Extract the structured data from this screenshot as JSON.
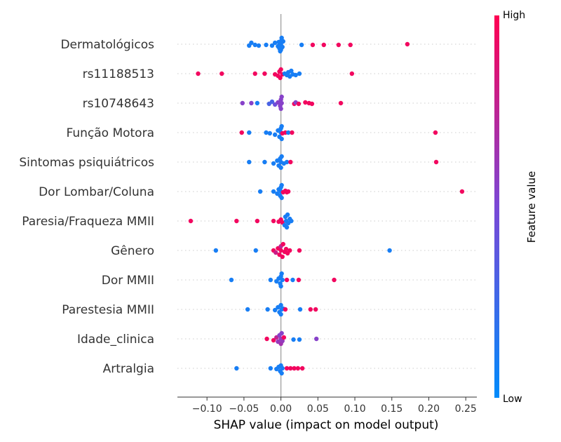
{
  "chart_data": {
    "type": "scatter",
    "subtype": "shap-beeswarm",
    "xlabel": "SHAP value (impact on model output)",
    "xlim": [
      -0.14,
      0.265
    ],
    "xticks": [
      -0.1,
      -0.05,
      0.0,
      0.05,
      0.1,
      0.15,
      0.2,
      0.25
    ],
    "xtick_labels": [
      "−0.10",
      "−0.05",
      "0.00",
      "0.05",
      "0.10",
      "0.15",
      "0.20",
      "0.25"
    ],
    "colorbar": {
      "title": "Feature value",
      "high_label": "High",
      "low_label": "Low",
      "low_color": "#008bfb",
      "high_color": "#ff0052"
    },
    "features": [
      {
        "name": "Dermatológicos",
        "points": [
          [
            -0.043,
            0.1,
            0.1
          ],
          [
            -0.04,
            -0.1,
            0.1
          ],
          [
            -0.035,
            0.05,
            0.1
          ],
          [
            -0.03,
            0.1,
            0.1
          ],
          [
            -0.02,
            0.05,
            0.1
          ],
          [
            -0.012,
            0.1,
            0.1
          ],
          [
            -0.008,
            -0.1,
            0.1
          ],
          [
            -0.004,
            0.15,
            0.1
          ],
          [
            -0.003,
            -0.15,
            0.1
          ],
          [
            -0.002,
            0.3,
            0.1
          ],
          [
            0.0,
            0.0,
            0.1
          ],
          [
            0.0,
            0.4,
            0.1
          ],
          [
            0.001,
            -0.3,
            0.1
          ],
          [
            0.002,
            0.2,
            0.1
          ],
          [
            0.003,
            -0.2,
            0.1
          ],
          [
            -0.001,
            0.5,
            0.1
          ],
          [
            0.001,
            -0.45,
            0.1
          ],
          [
            0.028,
            0.05,
            0.1
          ],
          [
            0.043,
            0.05,
            0.95
          ],
          [
            0.058,
            0.05,
            0.95
          ],
          [
            0.078,
            0.05,
            0.95
          ],
          [
            0.094,
            0.05,
            0.95
          ],
          [
            0.171,
            0.0,
            0.95
          ]
        ]
      },
      {
        "name": "rs11188513",
        "points": [
          [
            -0.112,
            0.0,
            0.95
          ],
          [
            -0.08,
            0.0,
            0.95
          ],
          [
            -0.035,
            0.0,
            0.95
          ],
          [
            -0.022,
            0.0,
            0.95
          ],
          [
            -0.008,
            0.05,
            0.95
          ],
          [
            -0.004,
            0.15,
            0.95
          ],
          [
            -0.002,
            -0.15,
            0.95
          ],
          [
            -0.001,
            0.3,
            0.95
          ],
          [
            0.0,
            -0.3,
            0.95
          ],
          [
            0.002,
            0.05,
            0.95
          ],
          [
            0.005,
            0.0,
            0.1
          ],
          [
            0.008,
            0.1,
            0.1
          ],
          [
            0.01,
            -0.1,
            0.1
          ],
          [
            0.012,
            0.2,
            0.1
          ],
          [
            0.014,
            -0.2,
            0.1
          ],
          [
            0.016,
            0.05,
            0.1
          ],
          [
            0.02,
            0.1,
            0.1
          ],
          [
            0.025,
            0.0,
            0.1
          ],
          [
            0.096,
            0.0,
            0.95
          ]
        ]
      },
      {
        "name": "rs10748643",
        "points": [
          [
            -0.052,
            0.0,
            0.55
          ],
          [
            -0.04,
            0.0,
            0.55
          ],
          [
            -0.032,
            0.0,
            0.1
          ],
          [
            -0.016,
            0.05,
            0.3
          ],
          [
            -0.012,
            -0.1,
            0.3
          ],
          [
            -0.008,
            0.1,
            0.45
          ],
          [
            -0.004,
            -0.05,
            0.55
          ],
          [
            -0.001,
            0.2,
            0.55
          ],
          [
            0.0,
            -0.25,
            0.55
          ],
          [
            0.0,
            0.4,
            0.55
          ],
          [
            0.001,
            -0.45,
            0.55
          ],
          [
            0.001,
            0.0,
            0.55
          ],
          [
            0.018,
            0.05,
            0.95
          ],
          [
            0.02,
            -0.05,
            0.55
          ],
          [
            0.024,
            0.05,
            0.95
          ],
          [
            0.033,
            -0.05,
            0.95
          ],
          [
            0.038,
            0.0,
            0.95
          ],
          [
            0.042,
            0.05,
            0.95
          ],
          [
            0.081,
            0.0,
            0.95
          ]
        ]
      },
      {
        "name": "Função Motora",
        "points": [
          [
            -0.053,
            0.0,
            0.95
          ],
          [
            -0.043,
            0.0,
            0.1
          ],
          [
            -0.02,
            0.0,
            0.1
          ],
          [
            -0.015,
            0.05,
            0.1
          ],
          [
            -0.008,
            0.15,
            0.1
          ],
          [
            -0.004,
            -0.15,
            0.1
          ],
          [
            -0.002,
            0.3,
            0.1
          ],
          [
            0.0,
            -0.3,
            0.1
          ],
          [
            0.0,
            0.0,
            0.1
          ],
          [
            0.001,
            0.45,
            0.1
          ],
          [
            0.001,
            -0.45,
            0.1
          ],
          [
            0.002,
            0.05,
            0.95
          ],
          [
            0.006,
            0.0,
            0.95
          ],
          [
            0.01,
            0.0,
            0.1
          ],
          [
            0.015,
            0.0,
            0.95
          ],
          [
            0.209,
            0.0,
            0.95
          ]
        ]
      },
      {
        "name": "Sintomas psiquiátricos",
        "points": [
          [
            -0.043,
            0.0,
            0.1
          ],
          [
            -0.022,
            0.0,
            0.1
          ],
          [
            -0.01,
            0.1,
            0.1
          ],
          [
            -0.005,
            -0.1,
            0.1
          ],
          [
            -0.003,
            0.25,
            0.1
          ],
          [
            -0.001,
            -0.25,
            0.1
          ],
          [
            0.0,
            0.4,
            0.1
          ],
          [
            0.0,
            0.0,
            0.1
          ],
          [
            0.001,
            -0.4,
            0.1
          ],
          [
            0.004,
            0.1,
            0.1
          ],
          [
            0.008,
            0.0,
            0.1
          ],
          [
            0.013,
            0.0,
            0.95
          ],
          [
            0.21,
            0.0,
            0.95
          ]
        ]
      },
      {
        "name": "Dor Lombar/Coluna",
        "points": [
          [
            -0.028,
            0.0,
            0.1
          ],
          [
            -0.01,
            0.0,
            0.1
          ],
          [
            -0.005,
            0.15,
            0.1
          ],
          [
            -0.003,
            -0.15,
            0.1
          ],
          [
            -0.001,
            0.3,
            0.1
          ],
          [
            0.0,
            -0.3,
            0.1
          ],
          [
            0.0,
            0.0,
            0.1
          ],
          [
            0.001,
            0.45,
            0.1
          ],
          [
            0.001,
            -0.45,
            0.1
          ],
          [
            0.003,
            0.05,
            0.95
          ],
          [
            0.006,
            -0.05,
            0.95
          ],
          [
            0.008,
            0.05,
            0.95
          ],
          [
            0.01,
            0.0,
            0.95
          ],
          [
            0.245,
            0.0,
            0.95
          ]
        ]
      },
      {
        "name": "Paresia/Fraqueza MMII",
        "points": [
          [
            -0.122,
            0.0,
            0.95
          ],
          [
            -0.06,
            0.0,
            0.95
          ],
          [
            -0.032,
            0.0,
            0.95
          ],
          [
            -0.01,
            0.0,
            0.95
          ],
          [
            -0.003,
            0.05,
            0.95
          ],
          [
            0.0,
            -0.1,
            0.95
          ],
          [
            0.002,
            0.1,
            0.95
          ],
          [
            0.005,
            0.3,
            0.1
          ],
          [
            0.006,
            -0.3,
            0.1
          ],
          [
            0.007,
            0.0,
            0.1
          ],
          [
            0.008,
            0.45,
            0.1
          ],
          [
            0.009,
            -0.45,
            0.1
          ],
          [
            0.01,
            0.15,
            0.1
          ],
          [
            0.012,
            -0.15,
            0.1
          ],
          [
            0.014,
            0.0,
            0.1
          ]
        ]
      },
      {
        "name": "Gênero",
        "points": [
          [
            -0.088,
            0.0,
            0.1
          ],
          [
            -0.034,
            0.0,
            0.1
          ],
          [
            -0.01,
            0.0,
            0.95
          ],
          [
            -0.007,
            0.15,
            0.8
          ],
          [
            -0.004,
            -0.15,
            0.95
          ],
          [
            -0.002,
            0.3,
            0.95
          ],
          [
            0.0,
            -0.3,
            0.75
          ],
          [
            0.0,
            0.0,
            0.95
          ],
          [
            0.002,
            0.45,
            0.95
          ],
          [
            0.003,
            -0.45,
            0.95
          ],
          [
            0.005,
            0.1,
            0.95
          ],
          [
            0.007,
            -0.1,
            0.95
          ],
          [
            0.009,
            0.2,
            0.95
          ],
          [
            0.012,
            0.0,
            0.95
          ],
          [
            0.025,
            0.0,
            0.95
          ],
          [
            0.147,
            0.0,
            0.1
          ]
        ]
      },
      {
        "name": "Dor MMII",
        "points": [
          [
            -0.067,
            0.0,
            0.1
          ],
          [
            -0.014,
            0.0,
            0.1
          ],
          [
            -0.006,
            0.1,
            0.1
          ],
          [
            -0.003,
            -0.1,
            0.1
          ],
          [
            -0.001,
            0.25,
            0.1
          ],
          [
            0.0,
            -0.25,
            0.1
          ],
          [
            0.0,
            0.45,
            0.1
          ],
          [
            0.001,
            -0.45,
            0.1
          ],
          [
            0.002,
            0.0,
            0.1
          ],
          [
            0.008,
            0.0,
            0.95
          ],
          [
            0.016,
            0.0,
            0.1
          ],
          [
            0.024,
            0.0,
            0.95
          ],
          [
            0.072,
            0.0,
            0.95
          ]
        ]
      },
      {
        "name": "Parestesia MMII",
        "points": [
          [
            -0.045,
            0.0,
            0.1
          ],
          [
            -0.018,
            0.0,
            0.1
          ],
          [
            -0.008,
            0.05,
            0.1
          ],
          [
            -0.004,
            -0.15,
            0.1
          ],
          [
            -0.002,
            0.2,
            0.1
          ],
          [
            0.0,
            -0.3,
            0.1
          ],
          [
            0.0,
            0.35,
            0.1
          ],
          [
            0.001,
            0.0,
            0.1
          ],
          [
            0.003,
            -0.05,
            0.1
          ],
          [
            0.006,
            0.0,
            0.95
          ],
          [
            0.026,
            0.0,
            0.1
          ],
          [
            0.04,
            0.0,
            0.95
          ],
          [
            0.047,
            0.0,
            0.95
          ]
        ]
      },
      {
        "name": "Idade_clinica",
        "points": [
          [
            -0.019,
            0.0,
            0.95
          ],
          [
            -0.01,
            0.1,
            0.95
          ],
          [
            -0.006,
            -0.1,
            0.75
          ],
          [
            -0.004,
            0.2,
            0.6
          ],
          [
            -0.002,
            -0.25,
            0.55
          ],
          [
            0.0,
            0.35,
            0.65
          ],
          [
            0.0,
            0.0,
            0.6
          ],
          [
            0.001,
            -0.4,
            0.55
          ],
          [
            0.002,
            0.15,
            0.6
          ],
          [
            0.004,
            -0.1,
            0.95
          ],
          [
            0.017,
            0.05,
            0.1
          ],
          [
            0.025,
            0.05,
            0.1
          ],
          [
            0.048,
            0.0,
            0.55
          ]
        ]
      },
      {
        "name": "Artralgia",
        "points": [
          [
            -0.06,
            0.0,
            0.1
          ],
          [
            -0.014,
            0.0,
            0.1
          ],
          [
            -0.006,
            0.05,
            0.1
          ],
          [
            -0.003,
            -0.1,
            0.1
          ],
          [
            -0.001,
            0.2,
            0.1
          ],
          [
            0.0,
            -0.2,
            0.1
          ],
          [
            0.001,
            0.35,
            0.1
          ],
          [
            0.002,
            0.0,
            0.1
          ],
          [
            0.008,
            0.0,
            0.95
          ],
          [
            0.013,
            0.0,
            0.95
          ],
          [
            0.018,
            0.0,
            0.95
          ],
          [
            0.023,
            0.0,
            0.95
          ],
          [
            0.029,
            0.0,
            0.95
          ]
        ]
      }
    ]
  }
}
